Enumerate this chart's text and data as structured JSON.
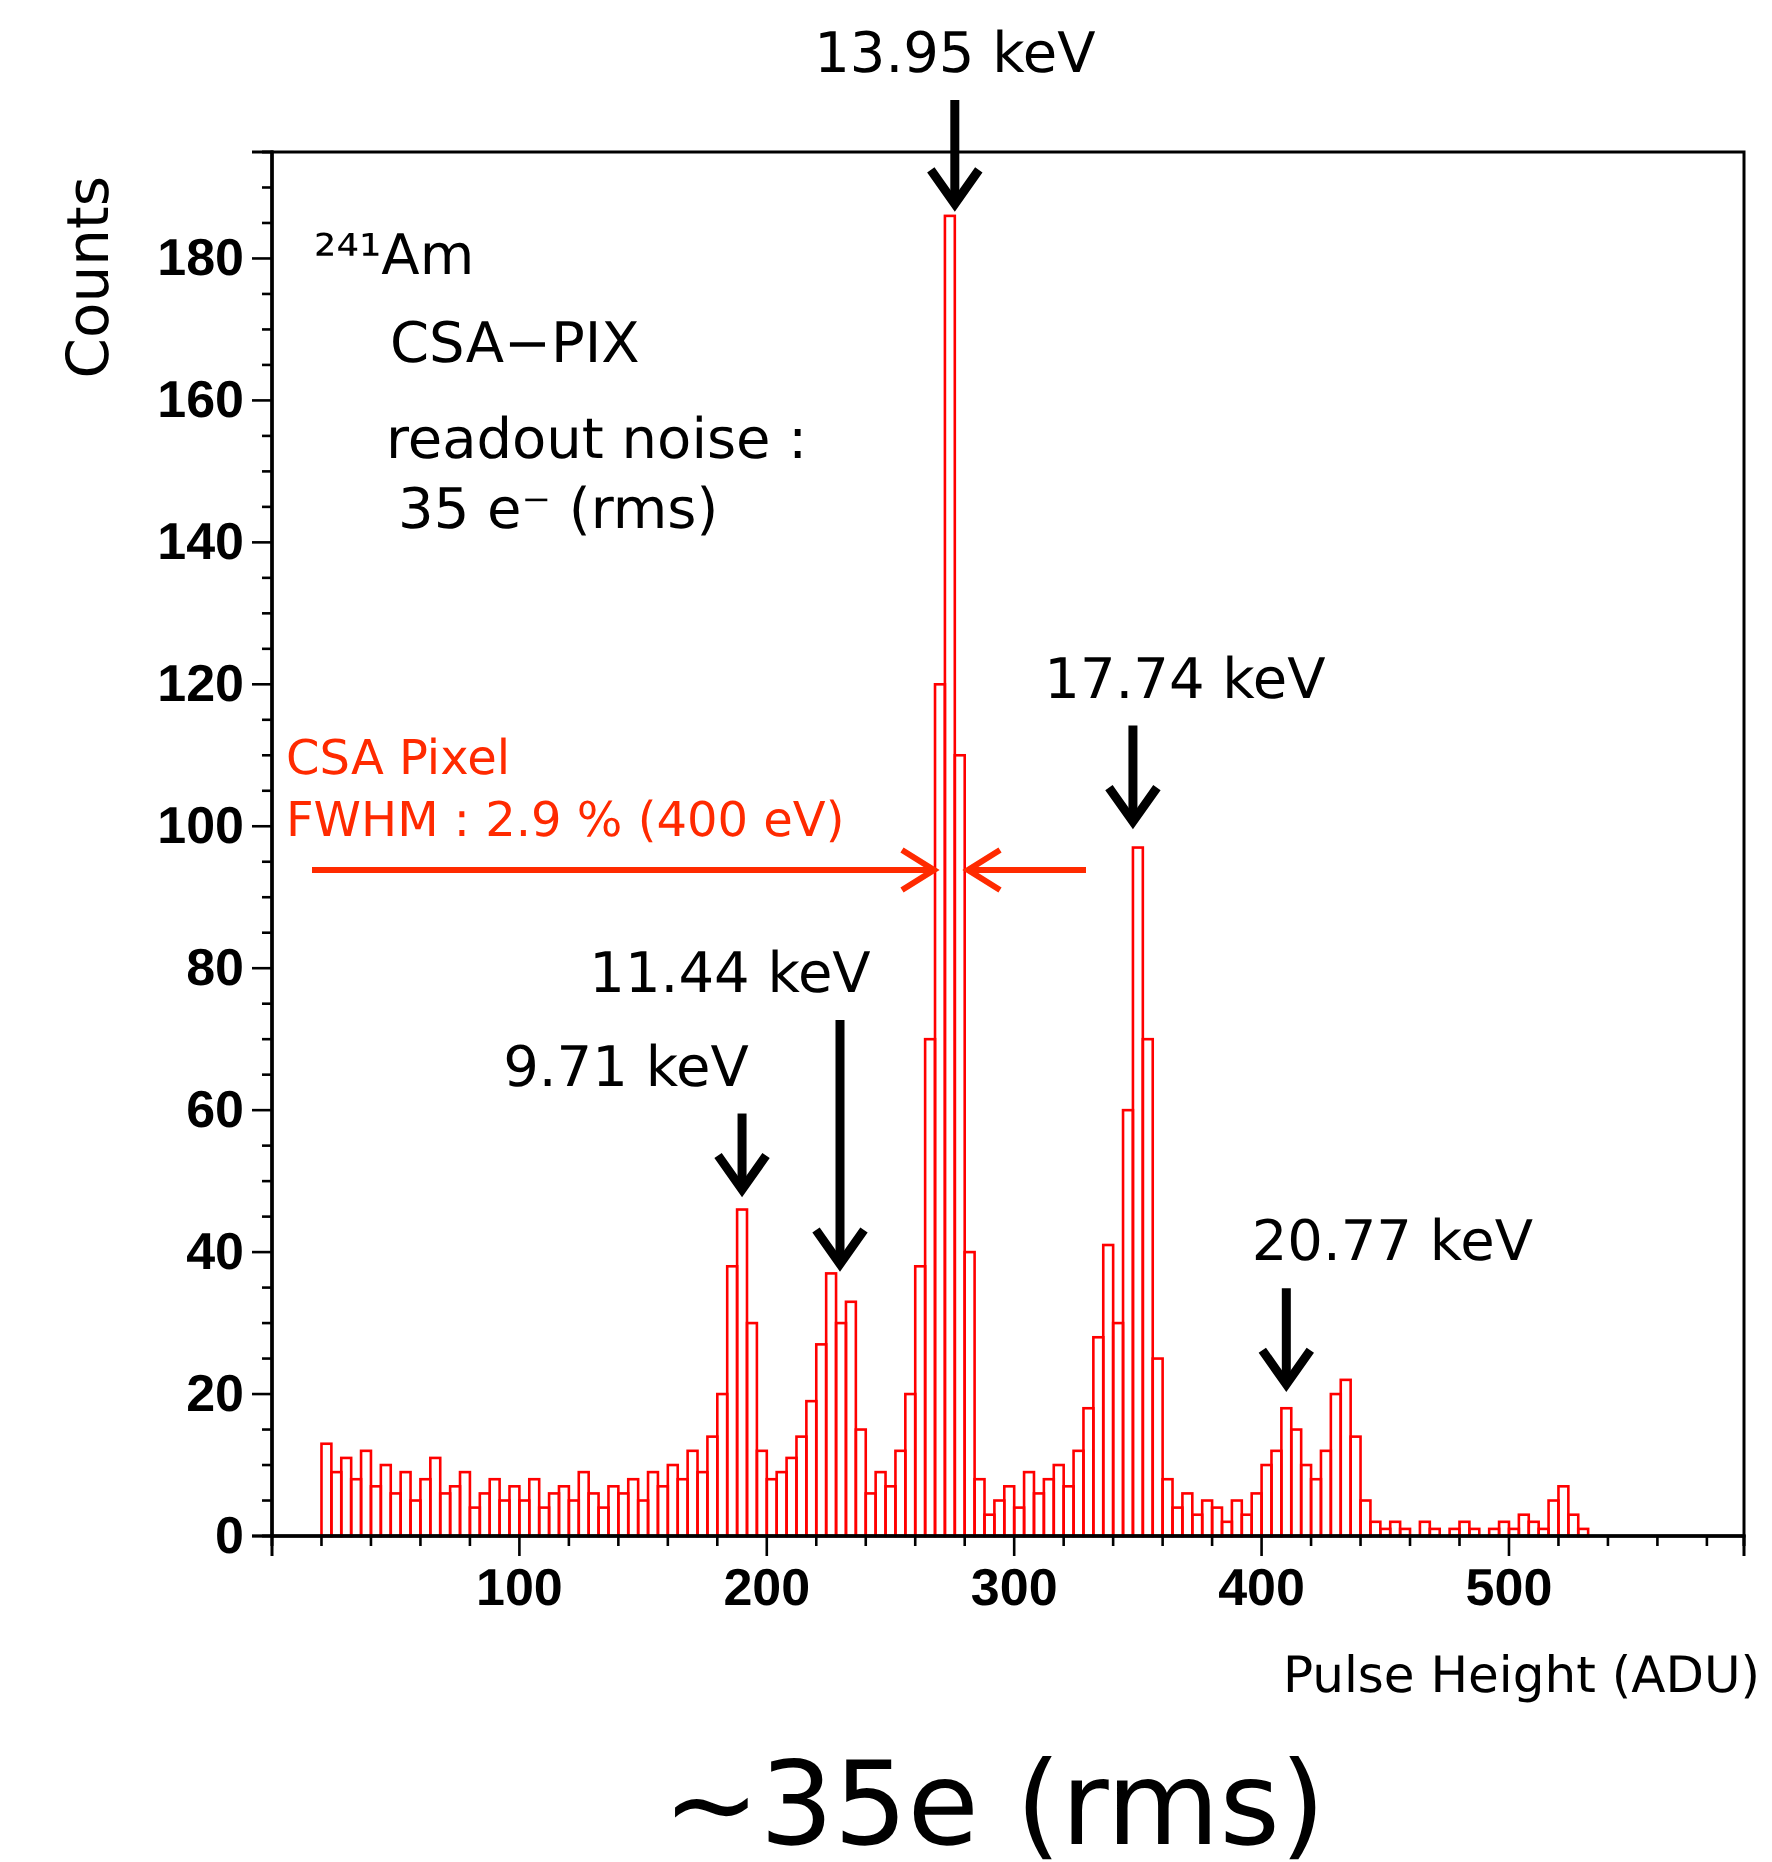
{
  "chart_data": {
    "type": "histogram",
    "xlabel": "Pulse Height (ADU)",
    "ylabel": "Counts",
    "color": "#ff0000",
    "bins": [
      20,
      24,
      28,
      32,
      36,
      40,
      44,
      48,
      52,
      56,
      60,
      64,
      68,
      72,
      76,
      80,
      84,
      88,
      92,
      96,
      100,
      104,
      108,
      112,
      116,
      120,
      124,
      128,
      132,
      136,
      140,
      144,
      148,
      152,
      156,
      160,
      164,
      168,
      172,
      176,
      180,
      184,
      188,
      192,
      196,
      200,
      204,
      208,
      212,
      216,
      220,
      224,
      228,
      232,
      236,
      240,
      244,
      248,
      252,
      256,
      260,
      264,
      268,
      272,
      276,
      280,
      284,
      288,
      292,
      296,
      300,
      304,
      308,
      312,
      316,
      320,
      324,
      328,
      332,
      336,
      340,
      344,
      348,
      352,
      356,
      360,
      364,
      368,
      372,
      376,
      380,
      384,
      388,
      392,
      396,
      400,
      404,
      408,
      412,
      416,
      420,
      424,
      428,
      432,
      436,
      440,
      444,
      448,
      452,
      456,
      460,
      464,
      468,
      472,
      476,
      480,
      484,
      488,
      492,
      496,
      500,
      504,
      508,
      512,
      516,
      520,
      524,
      528,
      532
    ],
    "values": [
      13,
      9,
      11,
      8,
      12,
      7,
      10,
      6,
      9,
      5,
      8,
      11,
      6,
      7,
      9,
      4,
      6,
      8,
      5,
      7,
      5,
      8,
      4,
      6,
      7,
      5,
      9,
      6,
      4,
      7,
      6,
      8,
      5,
      9,
      7,
      10,
      8,
      12,
      9,
      14,
      20,
      38,
      46,
      30,
      12,
      8,
      9,
      11,
      14,
      19,
      27,
      37,
      30,
      33,
      15,
      6,
      9,
      7,
      12,
      20,
      38,
      70,
      120,
      186,
      110,
      40,
      8,
      3,
      5,
      7,
      4,
      9,
      6,
      8,
      10,
      7,
      12,
      18,
      28,
      41,
      30,
      60,
      97,
      70,
      25,
      8,
      4,
      6,
      3,
      5,
      4,
      2,
      5,
      3,
      6,
      10,
      12,
      18,
      15,
      10,
      8,
      12,
      20,
      22,
      14,
      5,
      2,
      1,
      2,
      1,
      0,
      2,
      1,
      0,
      1,
      2,
      1,
      0,
      1,
      2,
      1,
      3,
      2,
      1,
      5,
      7,
      3,
      1
    ],
    "xlim": [
      0,
      595
    ],
    "ylim": [
      0,
      195
    ],
    "xticks": [
      {
        "value": 20,
        "label": null
      },
      {
        "value": 40,
        "label": null
      },
      {
        "value": 60,
        "label": null
      },
      {
        "value": 80,
        "label": null
      },
      100,
      {
        "value": 120,
        "label": null
      },
      {
        "value": 140,
        "label": null
      },
      {
        "value": 160,
        "label": null
      },
      {
        "value": 180,
        "label": null
      },
      200,
      {
        "value": 220,
        "label": null
      },
      {
        "value": 240,
        "label": null
      },
      {
        "value": 260,
        "label": null
      },
      {
        "value": 280,
        "label": null
      },
      300,
      {
        "value": 320,
        "label": null
      },
      {
        "value": 340,
        "label": null
      },
      {
        "value": 360,
        "label": null
      },
      {
        "value": 380,
        "label": null
      },
      400,
      {
        "value": 420,
        "label": null
      },
      {
        "value": 440,
        "label": null
      },
      {
        "value": 460,
        "label": null
      },
      {
        "value": 480,
        "label": null
      },
      500,
      {
        "value": 520,
        "label": null
      },
      {
        "value": 540,
        "label": null
      },
      {
        "value": 560,
        "label": null
      },
      {
        "value": 580,
        "label": null
      }
    ],
    "yticks": [
      0,
      {
        "value": 5,
        "label": null
      },
      {
        "value": 10,
        "label": null
      },
      {
        "value": 15,
        "label": null
      },
      20,
      {
        "value": 25,
        "label": null
      },
      {
        "value": 30,
        "label": null
      },
      {
        "value": 35,
        "label": null
      },
      40,
      {
        "value": 45,
        "label": null
      },
      {
        "value": 50,
        "label": null
      },
      {
        "value": 55,
        "label": null
      },
      60,
      {
        "value": 65,
        "label": null
      },
      {
        "value": 70,
        "label": null
      },
      {
        "value": 75,
        "label": null
      },
      80,
      {
        "value": 85,
        "label": null
      },
      {
        "value": 90,
        "label": null
      },
      {
        "value": 95,
        "label": null
      },
      100,
      {
        "value": 105,
        "label": null
      },
      {
        "value": 110,
        "label": null
      },
      {
        "value": 115,
        "label": null
      },
      120,
      {
        "value": 125,
        "label": null
      },
      {
        "value": 130,
        "label": null
      },
      {
        "value": 135,
        "label": null
      },
      140,
      {
        "value": 145,
        "label": null
      },
      {
        "value": 150,
        "label": null
      },
      {
        "value": 155,
        "label": null
      },
      160,
      {
        "value": 165,
        "label": null
      },
      {
        "value": 170,
        "label": null
      },
      {
        "value": 175,
        "label": null
      },
      180,
      {
        "value": 185,
        "label": null
      },
      {
        "value": 190,
        "label": null
      }
    ],
    "grid": false,
    "annotations": [
      {
        "text": "13.95 keV",
        "x": 276,
        "y": 186
      },
      {
        "text": "17.74 keV",
        "x": 348,
        "y": 97
      },
      "11.44 keV",
      {
        "text": "9.71 keV",
        "x": 190,
        "y": 46
      },
      {
        "text": "20.77 keV",
        "x": 410,
        "y": 18
      },
      "FWHM : 2.9 % (400 eV)",
      "CSA Pixel",
      "²⁴¹Am",
      "CSA−PIX",
      "readout noise :",
      "35 e⁻ (rms)",
      "~35e (rms)"
    ]
  }
}
